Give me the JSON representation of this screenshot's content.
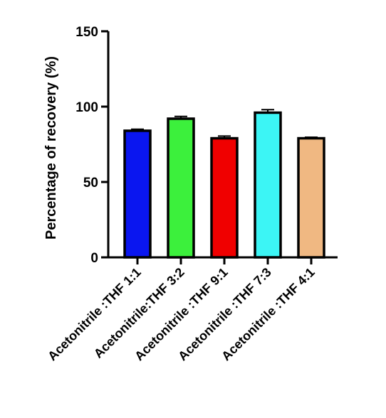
{
  "chart_data": {
    "type": "bar",
    "title": "",
    "xlabel": "",
    "ylabel": "Percentage of recovery (%)",
    "ylim": [
      0,
      150
    ],
    "yticks": [
      0,
      50,
      100,
      150
    ],
    "categories": [
      "Acetonitrile :THF 1:1",
      "Acetonitrile:THF 3:2",
      "Acetonitrile :THF 9:1",
      "Acetonitrile :THF 7:3",
      "Acetonitrile :THF 4:1"
    ],
    "values": [
      84,
      92,
      79,
      96,
      79
    ],
    "errors": [
      1,
      1.5,
      1.5,
      2,
      0.7
    ],
    "colors": [
      "#0a16f0",
      "#3cf03c",
      "#f00000",
      "#3cf5f5",
      "#f0b882"
    ],
    "grid": false,
    "legend": "none"
  }
}
